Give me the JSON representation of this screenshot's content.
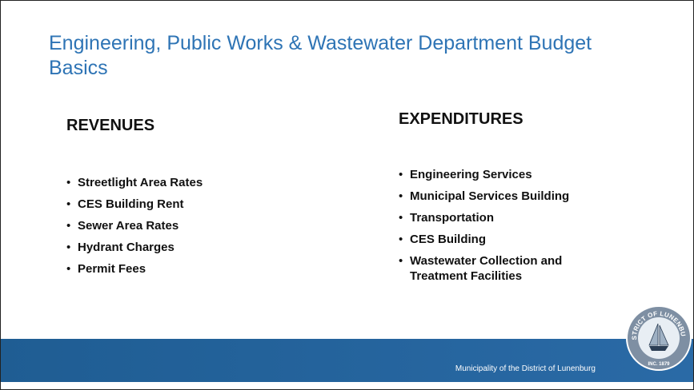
{
  "slide": {
    "title": "Engineering, Public Works & Wastewater Department Budget Basics",
    "revenues": {
      "heading": "REVENUES",
      "items": [
        "Streetlight Area Rates",
        "CES Building Rent",
        "Sewer Area Rates",
        "Hydrant Charges",
        "Permit Fees"
      ]
    },
    "expenditures": {
      "heading": "EXPENDITURES",
      "items": [
        "Engineering Services",
        "Municipal Services Building",
        "Transportation",
        "CES Building",
        "Wastewater Collection and Treatment Facilities"
      ]
    },
    "footer": "Municipality of the District of Lunenburg",
    "logo": {
      "name": "DISTRICT OF LUNENBURG",
      "year": "INC. 1879"
    }
  }
}
